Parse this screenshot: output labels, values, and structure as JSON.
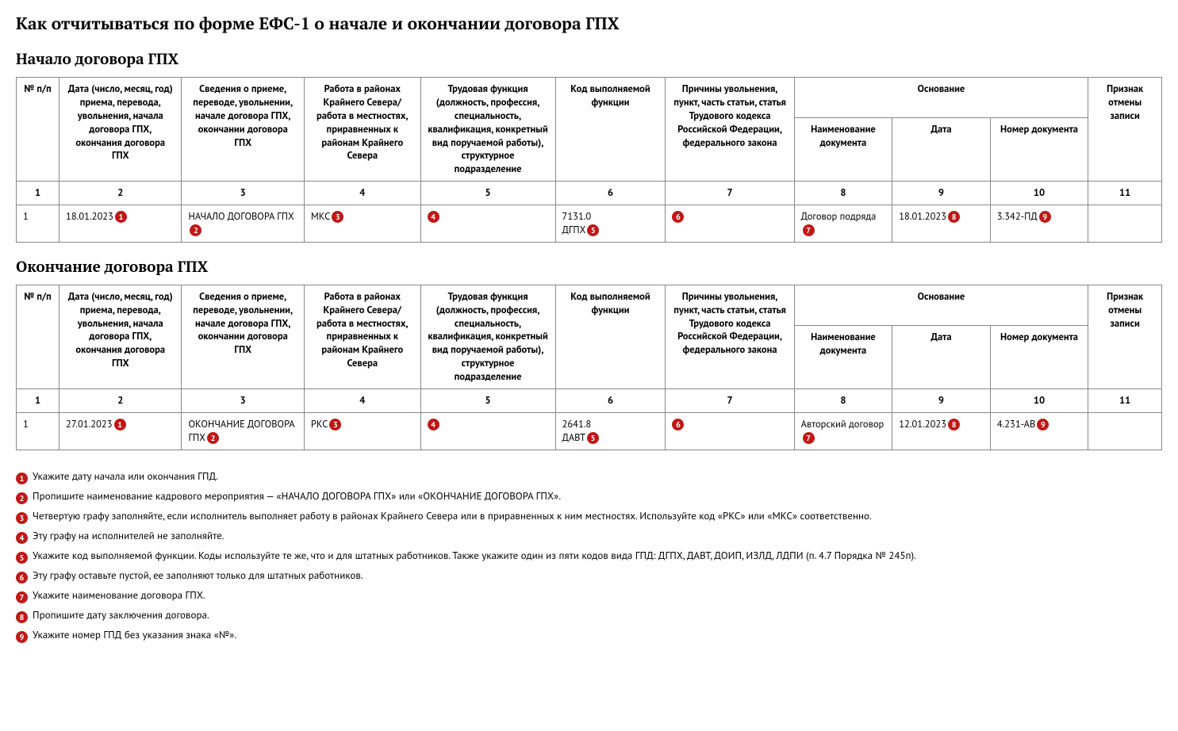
{
  "title": "Как отчитываться по форме ЕФС-1 о начале и окончании договора ГПХ",
  "colors": {
    "badge_bg": "#c01818",
    "badge_fg": "#ffffff",
    "border": "#888888",
    "text": "#000000",
    "bg": "#ffffff"
  },
  "columns": {
    "c1": "№ п/п",
    "c2": "Дата (число, месяц, год) приема, перево­да, увольнения, нача­ла договора ГПХ, окончания договора ГПХ",
    "c2b": "Дата (число, месяц, год) приема, пере­вода, увольнения, начала договора ГПХ, окончания договора ГПХ",
    "c3": "Сведения о приеме, переводе, увольне­нии, начале догово­ра ГПХ, окончании договора ГПХ",
    "c4": "Работа в районах Крайнего Севера/ работа в местно­стях, приравнен­ных к районам Крайнего Севера",
    "c5": "Трудовая функция (должность, профес­сия, специальность, квалификация, кон­кретный вид поручае­мой работы), структур­ное подразделение",
    "c5b": "Трудовая функция (должность, профес­сия, специальность, квалификация, кон­кретный вид поруча­емой работы), струк­турное подразделение",
    "c6": "Код выполняемой функции",
    "c7": "Причины увольне­ния, пункт, часть ста­тьи, статья Трудового кодекса Российской Федерации, феде­рального закона",
    "group": "Основание",
    "c8": "Наименование документа",
    "c9": "Дата",
    "c10": "Номер доку­мента",
    "c10b": "Номер документа",
    "c11": "Признак отмены записи"
  },
  "numrow": [
    "1",
    "2",
    "3",
    "4",
    "5",
    "6",
    "7",
    "8",
    "9",
    "10",
    "11"
  ],
  "section1": {
    "heading": "Начало договора ГПХ",
    "row": {
      "n": "1",
      "date": "18.01.2023",
      "event": "НАЧАЛО ДОГОВОРА ГПХ",
      "region": "МКС",
      "func_code1": "7131.0",
      "func_code2": "ДГПХ",
      "doc_name": "Договор подряда",
      "doc_date": "18.01.2023",
      "doc_num": "3.342-ПД"
    }
  },
  "section2": {
    "heading": "Окончание договора ГПХ",
    "row": {
      "n": "1",
      "date": "27.01.2023",
      "event": "ОКОНЧАНИЕ ДОГОВОРА ГПХ",
      "region": "РКС",
      "func_code1": "2641.8",
      "func_code2": "ДАВТ",
      "doc_name": "Авторский договор",
      "doc_date": "12.01.2023",
      "doc_num": "4.231-АВ"
    }
  },
  "legend": {
    "1": "Укажите дату начала или окончания ГПД.",
    "2": "Пропишите наименование кадрового мероприятия — «НАЧАЛО ДОГОВОРА ГПХ» или «ОКОНЧАНИЕ ДОГОВОРА ГПХ».",
    "3": "Четвертую графу заполняйте, если исполнитель выполняет работу в районах Крайнего Севера или в приравненных к ним местностях. Используйте код «РКС» или «МКС» соответственно.",
    "4": "Эту графу на исполнителей не заполняйте.",
    "5": "Укажите код выполняемой функции. Коды используйте те же, что и для штатных работников. Также укажите один из пяти кодов вида ГПД: ДГПХ, ДАВТ, ДОИП, ИЗЛД, ЛДПИ (п. 4.7 Порядка № 245п).",
    "6": "Эту графу оставьте пустой, ее заполняют только для штатных работников.",
    "7": "Укажите наименование договора ГПХ.",
    "8": "Пропишите дату заключения договора.",
    "9": "Укажите номер ГПД без указания знака «№»."
  }
}
